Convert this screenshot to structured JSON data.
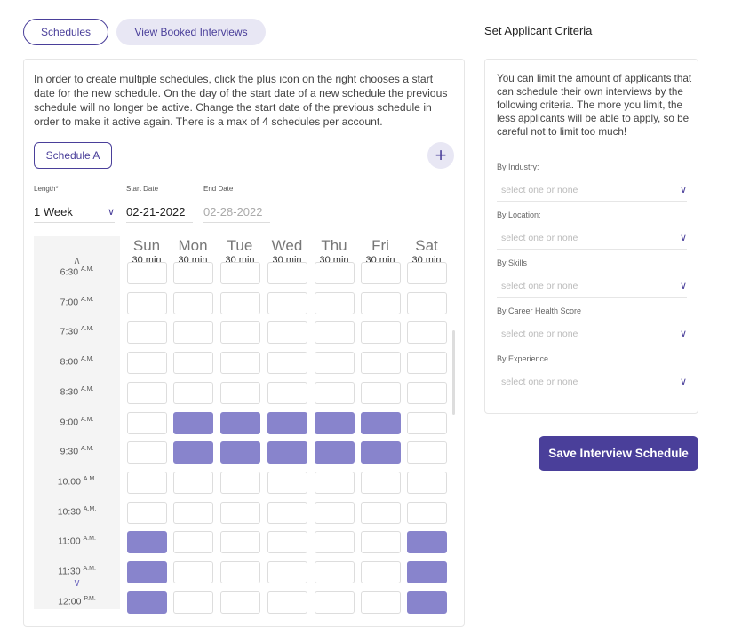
{
  "tabs": {
    "schedules": "Schedules",
    "booked": "View Booked Interviews"
  },
  "intro": "In order to create multiple schedules, click the plus icon on the right chooses a start date for the new schedule. On the day of the start date of a new schedule the previous schedule will no longer be active. Change the start date of the previous schedule in order to make it active again. There is a max of 4 schedules per account.",
  "schedule_button": "Schedule A",
  "plus": "+",
  "length": {
    "label": "Length*",
    "value": "1 Week"
  },
  "start_date": {
    "label": "Start Date",
    "value": "02-21-2022"
  },
  "end_date": {
    "label": "End Date",
    "value": "02-28-2022"
  },
  "days": [
    {
      "name": "Sun",
      "slot": "30 min"
    },
    {
      "name": "Mon",
      "slot": "30 min"
    },
    {
      "name": "Tue",
      "slot": "30 min"
    },
    {
      "name": "Wed",
      "slot": "30 min"
    },
    {
      "name": "Thu",
      "slot": "30 min"
    },
    {
      "name": "Fri",
      "slot": "30 min"
    },
    {
      "name": "Sat",
      "slot": "30 min"
    }
  ],
  "times": [
    {
      "time": "6:30",
      "ampm": "A.M.",
      "selected": []
    },
    {
      "time": "7:00",
      "ampm": "A.M.",
      "selected": []
    },
    {
      "time": "7:30",
      "ampm": "A.M.",
      "selected": []
    },
    {
      "time": "8:00",
      "ampm": "A.M.",
      "selected": []
    },
    {
      "time": "8:30",
      "ampm": "A.M.",
      "selected": []
    },
    {
      "time": "9:00",
      "ampm": "A.M.",
      "selected": [
        1,
        2,
        3,
        4,
        5
      ]
    },
    {
      "time": "9:30",
      "ampm": "A.M.",
      "selected": [
        1,
        2,
        3,
        4,
        5
      ]
    },
    {
      "time": "10:00",
      "ampm": "A.M.",
      "selected": []
    },
    {
      "time": "10:30",
      "ampm": "A.M.",
      "selected": []
    },
    {
      "time": "11:00",
      "ampm": "A.M.",
      "selected": [
        0,
        6
      ]
    },
    {
      "time": "11:30",
      "ampm": "A.M.",
      "selected": [
        0,
        6
      ]
    },
    {
      "time": "12:00",
      "ampm": "P.M.",
      "selected": [
        0,
        6
      ]
    }
  ],
  "criteria": {
    "title": "Set Applicant Criteria",
    "description": "You can limit the amount of applicants that can schedule their own interviews by the following criteria. The more you limit, the less applicants will be able to apply, so be careful not to limit too much!",
    "fields": [
      {
        "label": "By Industry:",
        "placeholder": "select one or none"
      },
      {
        "label": "By Location:",
        "placeholder": "select one or none"
      },
      {
        "label": "By Skills",
        "placeholder": "select one or none"
      },
      {
        "label": "By Career Health Score",
        "placeholder": "select one or none"
      },
      {
        "label": "By Experience",
        "placeholder": "select one or none"
      }
    ]
  },
  "save_button": "Save Interview Schedule",
  "colors": {
    "accent": "#4a3f9a",
    "selected": "#8884cc"
  }
}
